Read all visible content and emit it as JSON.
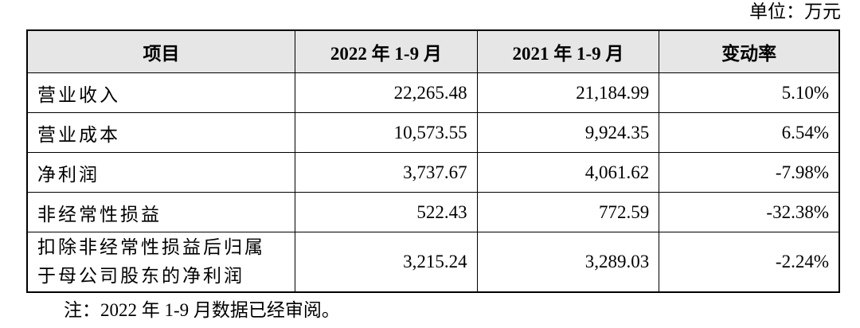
{
  "unit": "单位：万元",
  "table": {
    "header": [
      "项目",
      "2022 年 1-9 月",
      "2021 年 1-9 月",
      "变动率"
    ],
    "rows": [
      [
        "营业收入",
        "22,265.48",
        "21,184.99",
        "5.10%"
      ],
      [
        "营业成本",
        "10,573.55",
        "9,924.35",
        "6.54%"
      ],
      [
        "净利润",
        "3,737.67",
        "4,061.62",
        "-7.98%"
      ],
      [
        "非经常性损益",
        "522.43",
        "772.59",
        "-32.38%"
      ],
      [
        "扣除非经常性损益后归属于母公司股东的净利润",
        "3,215.24",
        "3,289.03",
        "-2.24%"
      ]
    ]
  },
  "note": "注：2022 年 1-9 月数据已经审阅。"
}
